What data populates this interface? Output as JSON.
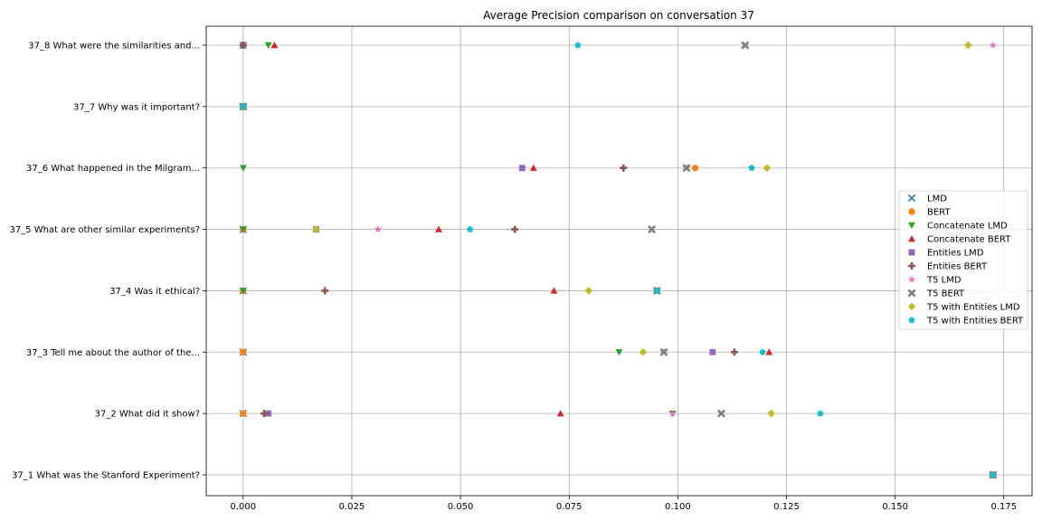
{
  "chart_data": {
    "type": "scatter",
    "title": "Average Precision comparison on conversation 37",
    "xlabel": "",
    "ylabel": "",
    "xlim": [
      -0.0085,
      0.1815
    ],
    "x_ticks": [
      "0.000",
      "0.025",
      "0.050",
      "0.075",
      "0.100",
      "0.125",
      "0.150",
      "0.175"
    ],
    "x_tick_values": [
      0,
      0.025,
      0.05,
      0.075,
      0.1,
      0.125,
      0.15,
      0.175
    ],
    "grid": true,
    "legend_placement": "center-right",
    "categories": [
      "37_1 What was the Stanford Experiment?",
      "37_2 What did it show?",
      "37_3 Tell me about the author of the...",
      "37_4 Was it ethical?",
      "37_5 What are other similar experiments?",
      "37_6 What happened in the Milgram...",
      "37_7 Why was it important?",
      "37_8 What were the similarities and..."
    ],
    "series": [
      {
        "name": "LMD",
        "marker": "x",
        "color": "#1f77b4",
        "values": [
          0.1725,
          0.0,
          0.0,
          0.0,
          0.0,
          0.102,
          0.0,
          0.0
        ]
      },
      {
        "name": "BERT",
        "marker": "circle",
        "color": "#ff7f0e",
        "values": [
          0.1725,
          0.0,
          0.0,
          0.0,
          0.0,
          0.104,
          0.0,
          0.0
        ]
      },
      {
        "name": "Concatenate LMD",
        "marker": "triangle-down",
        "color": "#2ca02c",
        "values": [
          0.1725,
          0.0988,
          0.0865,
          0.0,
          0.0,
          0.0,
          0.0,
          0.0058
        ]
      },
      {
        "name": "Concatenate BERT",
        "marker": "triangle-up",
        "color": "#d62728",
        "values": [
          0.1725,
          0.073,
          0.121,
          0.0715,
          0.045,
          0.0668,
          0.0,
          0.0072
        ]
      },
      {
        "name": "Entities LMD",
        "marker": "square",
        "color": "#9467bd",
        "values": [
          0.1725,
          0.0058,
          0.108,
          0.0952,
          0.0168,
          0.0642,
          0.0,
          0.0
        ]
      },
      {
        "name": "Entities BERT",
        "marker": "plus",
        "color": "#8c564b",
        "values": [
          0.1725,
          0.0048,
          0.113,
          0.0188,
          0.0625,
          0.0875,
          0.0,
          0.0
        ]
      },
      {
        "name": "T5 LMD",
        "marker": "star",
        "color": "#e377c2",
        "values": [
          0.1725,
          0.0988,
          0.0968,
          0.0952,
          0.031,
          0.102,
          0.0,
          0.1725
        ]
      },
      {
        "name": "T5 BERT",
        "marker": "x-thick",
        "color": "#7f7f7f",
        "values": [
          0.1725,
          0.11,
          0.0968,
          0.0952,
          0.094,
          0.102,
          0.0,
          0.1155
        ]
      },
      {
        "name": "T5 with Entities LMD",
        "marker": "diamond",
        "color": "#bcbd22",
        "values": [
          0.1725,
          0.1215,
          0.092,
          0.0795,
          0.0168,
          0.1205,
          0.0,
          0.1668
        ]
      },
      {
        "name": "T5 with Entities BERT",
        "marker": "pentagon",
        "color": "#17becf",
        "values": [
          0.1725,
          0.1328,
          0.1195,
          0.0952,
          0.0522,
          0.117,
          0.0,
          0.077
        ]
      }
    ]
  }
}
